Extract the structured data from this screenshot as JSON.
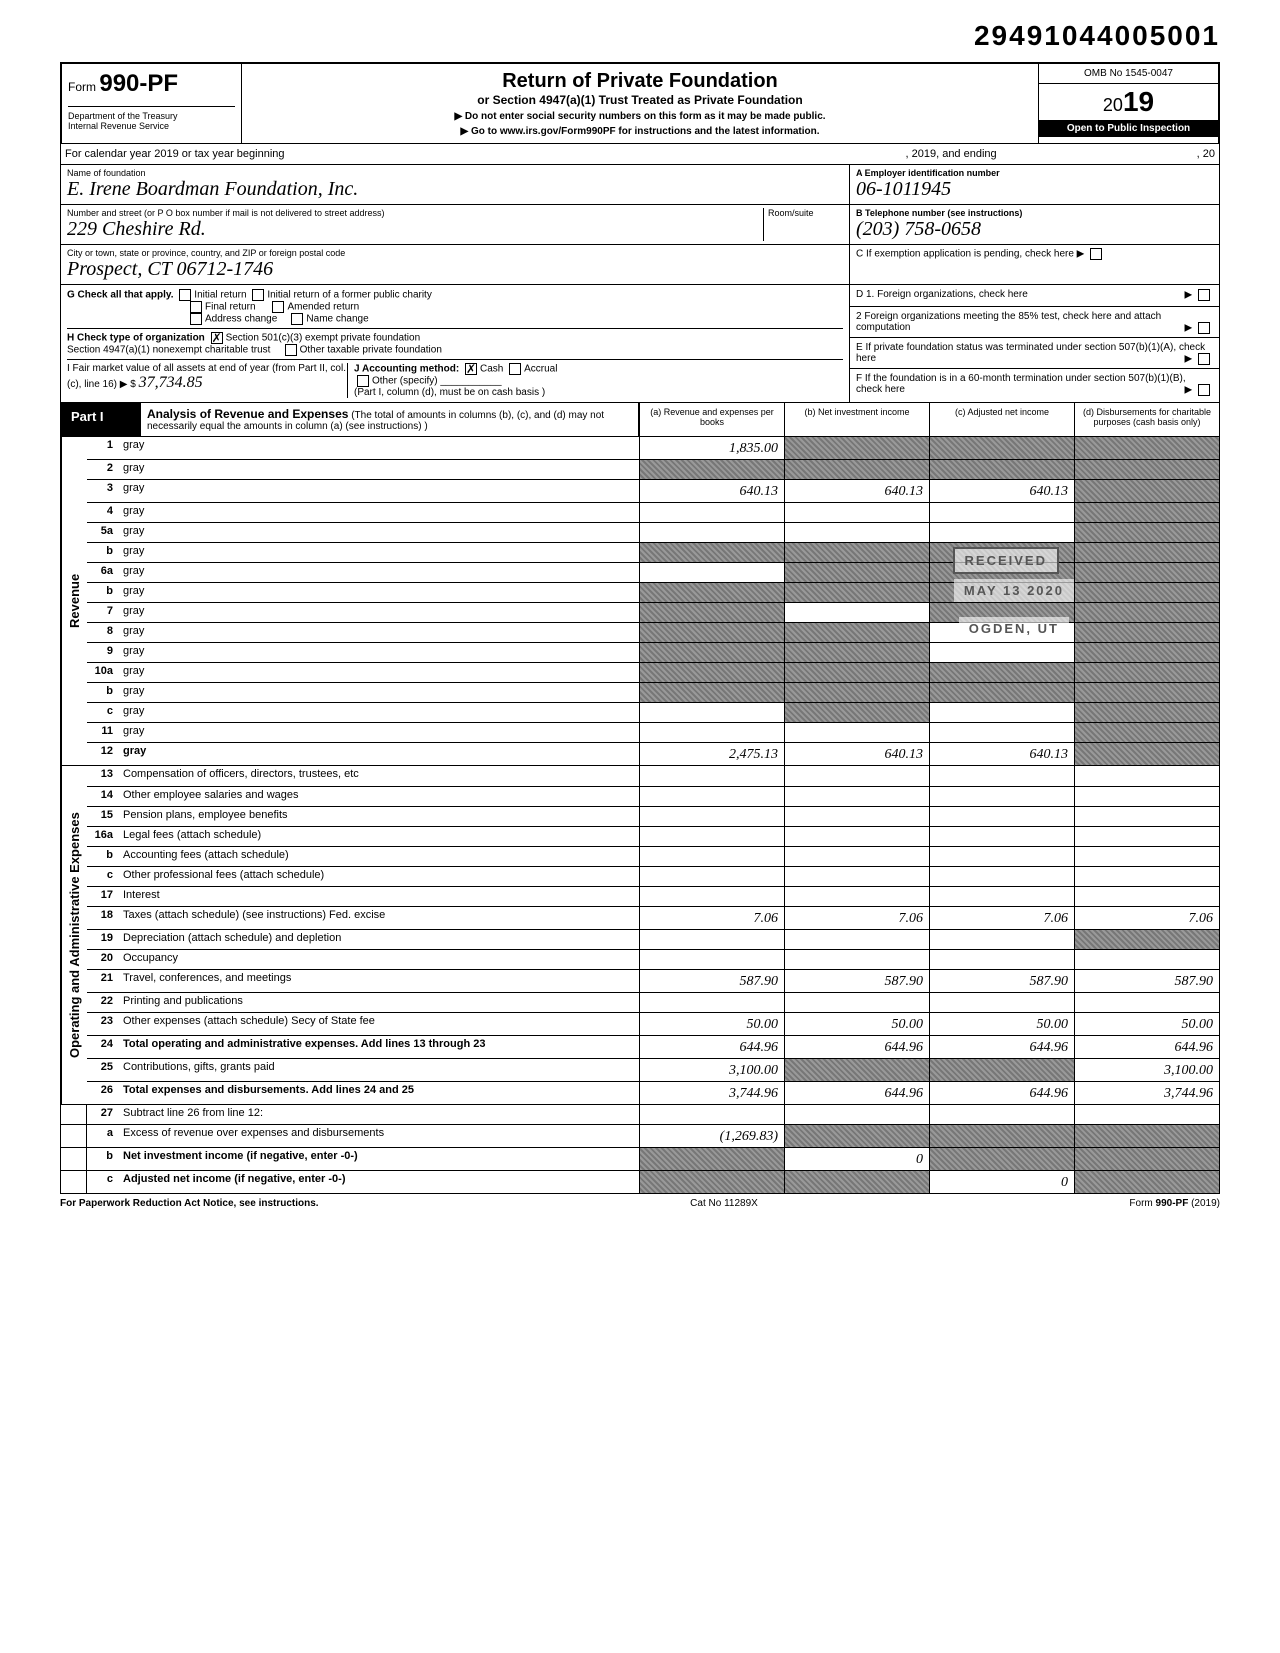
{
  "header_number": "29491044005001",
  "top": {
    "form_label": "Form",
    "form_number": "990-PF",
    "dept1": "Department of the Treasury",
    "dept2": "Internal Revenue Service",
    "title": "Return of Private Foundation",
    "subtitle": "or Section 4947(a)(1) Trust Treated as Private Foundation",
    "instr1": "Do not enter social security numbers on this form as it may be made public.",
    "instr2": "Go to www.irs.gov/Form990PF for instructions and the latest information.",
    "omb": "OMB No 1545-0047",
    "year_prefix": "20",
    "year": "19",
    "inspect": "Open to Public Inspection"
  },
  "calyear": {
    "lead": "For calendar year 2019 or tax year beginning",
    "mid": ", 2019, and ending",
    "end": ", 20"
  },
  "name": {
    "lbl_foundation": "Name of foundation",
    "foundation": "E. Irene Boardman Foundation, Inc.",
    "lbl_address": "Number and street (or P O box number if mail is not delivered to street address)",
    "address": "229 Cheshire Rd.",
    "room_lbl": "Room/suite",
    "lbl_city": "City or town, state or province, country, and ZIP or foreign postal code",
    "city": "Prospect, CT 06712-1746",
    "ein_lbl": "A  Employer identification number",
    "ein": "06-1011945",
    "tel_lbl": "B  Telephone number (see instructions)",
    "tel": "(203) 758-0658",
    "c_lbl": "C  If exemption application is pending, check here ▶"
  },
  "checks": {
    "g_lbl": "G  Check all that apply.",
    "g1": "Initial return",
    "g2": "Initial return of a former public charity",
    "g3": "Final return",
    "g4": "Amended return",
    "g5": "Address change",
    "g6": "Name change",
    "h_lbl": "H  Check type of organization",
    "h1": "Section 501(c)(3) exempt private foundation",
    "h2": "Section 4947(a)(1) nonexempt charitable trust",
    "h3": "Other taxable private foundation",
    "i_lbl": "I  Fair market value of all assets at end of year (from Part II, col. (c), line 16) ▶ $",
    "i_val": "37,734.85",
    "j_lbl": "J  Accounting method:",
    "j1": "Cash",
    "j2": "Accrual",
    "j3": "Other (specify)",
    "j_note": "(Part I, column (d), must be on cash basis )",
    "d1": "D  1. Foreign organizations, check here",
    "d2": "2  Foreign organizations meeting the 85% test, check here and attach computation",
    "e": "E  If private foundation status was terminated under section 507(b)(1)(A), check here",
    "f": "F  If the foundation is in a 60-month termination under section 507(b)(1)(B), check here"
  },
  "part1": {
    "label": "Part I",
    "title": "Analysis of Revenue and Expenses",
    "note": "(The total of amounts in columns (b), (c), and (d) may not necessarily equal the amounts in column (a) (see instructions) )",
    "col_a": "(a) Revenue and expenses per books",
    "col_b": "(b) Net investment income",
    "col_c": "(c) Adjusted net income",
    "col_d": "(d) Disbursements for charitable purposes (cash basis only)"
  },
  "sections": {
    "revenue": "Revenue",
    "opex": "Operating and Administrative Expenses"
  },
  "rows": [
    {
      "n": "1",
      "d": "gray",
      "a": "1,835.00",
      "b": "gray",
      "c": "gray"
    },
    {
      "n": "2",
      "d": "gray",
      "a": "gray",
      "b": "gray",
      "c": "gray"
    },
    {
      "n": "3",
      "d": "gray",
      "a": "640.13",
      "b": "640.13",
      "c": "640.13"
    },
    {
      "n": "4",
      "d": "gray",
      "a": "",
      "b": "",
      "c": ""
    },
    {
      "n": "5a",
      "d": "gray",
      "a": "",
      "b": "",
      "c": ""
    },
    {
      "n": "b",
      "d": "gray",
      "a": "gray",
      "b": "gray",
      "c": "gray"
    },
    {
      "n": "6a",
      "d": "gray",
      "a": "",
      "b": "gray",
      "c": "gray"
    },
    {
      "n": "b",
      "d": "gray",
      "a": "gray",
      "b": "gray",
      "c": "gray"
    },
    {
      "n": "7",
      "d": "gray",
      "a": "gray",
      "b": "",
      "c": "gray"
    },
    {
      "n": "8",
      "d": "gray",
      "a": "gray",
      "b": "gray",
      "c": ""
    },
    {
      "n": "9",
      "d": "gray",
      "a": "gray",
      "b": "gray",
      "c": ""
    },
    {
      "n": "10a",
      "d": "gray",
      "a": "gray",
      "b": "gray",
      "c": "gray"
    },
    {
      "n": "b",
      "d": "gray",
      "a": "gray",
      "b": "gray",
      "c": "gray"
    },
    {
      "n": "c",
      "d": "gray",
      "a": "",
      "b": "gray",
      "c": ""
    },
    {
      "n": "11",
      "d": "gray",
      "a": "",
      "b": "",
      "c": ""
    },
    {
      "n": "12",
      "d": "gray",
      "a": "2,475.13",
      "b": "640.13",
      "c": "640.13",
      "bold": true
    }
  ],
  "rows2": [
    {
      "n": "13",
      "d": "Compensation of officers, directors, trustees, etc",
      "a": "",
      "b": "",
      "c": "",
      "e": ""
    },
    {
      "n": "14",
      "d": "Other employee salaries and wages",
      "a": "",
      "b": "",
      "c": "",
      "e": ""
    },
    {
      "n": "15",
      "d": "Pension plans, employee benefits",
      "a": "",
      "b": "",
      "c": "",
      "e": ""
    },
    {
      "n": "16a",
      "d": "Legal fees (attach schedule)",
      "a": "",
      "b": "",
      "c": "",
      "e": ""
    },
    {
      "n": "b",
      "d": "Accounting fees (attach schedule)",
      "a": "",
      "b": "",
      "c": "",
      "e": ""
    },
    {
      "n": "c",
      "d": "Other professional fees (attach schedule)",
      "a": "",
      "b": "",
      "c": "",
      "e": ""
    },
    {
      "n": "17",
      "d": "Interest",
      "a": "",
      "b": "",
      "c": "",
      "e": ""
    },
    {
      "n": "18",
      "d": "Taxes (attach schedule) (see instructions) Fed. excise",
      "a": "7.06",
      "b": "7.06",
      "c": "7.06",
      "e": "7.06"
    },
    {
      "n": "19",
      "d": "Depreciation (attach schedule) and depletion",
      "a": "",
      "b": "",
      "c": "",
      "e": "gray"
    },
    {
      "n": "20",
      "d": "Occupancy",
      "a": "",
      "b": "",
      "c": "",
      "e": ""
    },
    {
      "n": "21",
      "d": "Travel, conferences, and meetings",
      "a": "587.90",
      "b": "587.90",
      "c": "587.90",
      "e": "587.90"
    },
    {
      "n": "22",
      "d": "Printing and publications",
      "a": "",
      "b": "",
      "c": "",
      "e": ""
    },
    {
      "n": "23",
      "d": "Other expenses (attach schedule) Secy of State fee",
      "a": "50.00",
      "b": "50.00",
      "c": "50.00",
      "e": "50.00"
    },
    {
      "n": "24",
      "d": "Total operating and administrative expenses. Add lines 13 through 23",
      "a": "644.96",
      "b": "644.96",
      "c": "644.96",
      "e": "644.96",
      "bold": true
    },
    {
      "n": "25",
      "d": "Contributions, gifts, grants paid",
      "a": "3,100.00",
      "b": "gray",
      "c": "gray",
      "e": "3,100.00"
    },
    {
      "n": "26",
      "d": "Total expenses and disbursements. Add lines 24 and 25",
      "a": "3,744.96",
      "b": "644.96",
      "c": "644.96",
      "e": "3,744.96",
      "bold": true
    }
  ],
  "rows3": [
    {
      "n": "27",
      "d": "Subtract line 26 from line 12:",
      "a": "",
      "b": "",
      "c": "",
      "e": ""
    },
    {
      "n": "a",
      "d": "Excess of revenue over expenses and disbursements",
      "a": "(1,269.83)",
      "b": "gray",
      "c": "gray",
      "e": "gray"
    },
    {
      "n": "b",
      "d": "Net investment income (if negative, enter -0-)",
      "a": "gray",
      "b": "0",
      "c": "gray",
      "e": "gray",
      "bold": true
    },
    {
      "n": "c",
      "d": "Adjusted net income (if negative, enter -0-)",
      "a": "gray",
      "b": "gray",
      "c": "0",
      "e": "gray",
      "bold": true
    }
  ],
  "stamps": {
    "received": "RECEIVED",
    "date": "MAY 13 2020",
    "ogden": "OGDEN, UT"
  },
  "footer": {
    "left": "For Paperwork Reduction Act Notice, see instructions.",
    "mid": "Cat No 11289X",
    "right": "Form 990-PF (2019)"
  }
}
